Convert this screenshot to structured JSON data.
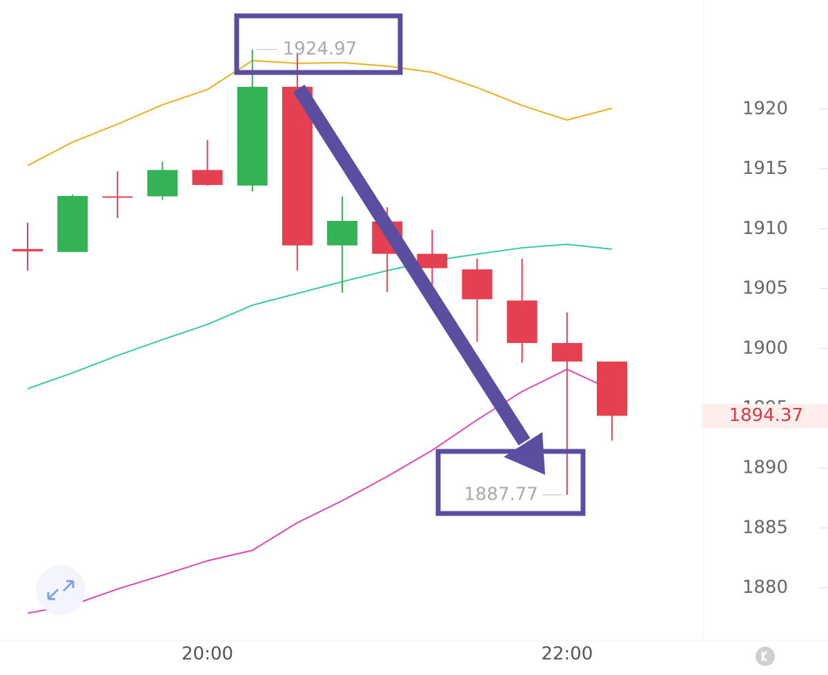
{
  "chart_data": {
    "type": "candlestick",
    "categories": [
      null,
      null,
      null,
      null,
      "20:00",
      null,
      null,
      null,
      null,
      null,
      null,
      null,
      "22:00",
      null
    ],
    "open": [
      1908.3,
      1908.05,
      1912.7,
      1912.7,
      1914.9,
      1913.6,
      1921.85,
      1908.6,
      1910.6,
      1907.9,
      1906.6,
      1904.0,
      1900.45,
      1898.9
    ],
    "high": [
      1910.5,
      1912.85,
      1914.8,
      1915.6,
      1917.4,
      1924.97,
      1924.7,
      1912.7,
      1911.8,
      1909.9,
      1907.5,
      1907.5,
      1903.0,
      1898.9
    ],
    "low": [
      1906.5,
      1908.05,
      1910.9,
      1912.4,
      1913.6,
      1913.1,
      1906.5,
      1904.65,
      1904.7,
      1905.05,
      1900.55,
      1898.8,
      1887.77,
      1892.3
    ],
    "close": [
      1908.1,
      1912.73,
      1912.6,
      1914.9,
      1913.65,
      1921.85,
      1908.6,
      1910.65,
      1907.9,
      1906.7,
      1904.1,
      1900.45,
      1898.9,
      1894.37
    ],
    "up_color": "#34b356",
    "down_color": "#e5404f",
    "lines": [
      {
        "color": "#e8b020",
        "values": [
          1915.27,
          1917.23,
          1918.73,
          1920.35,
          1921.62,
          1924.04,
          1923.81,
          1923.87,
          1923.58,
          1923.06,
          1921.79,
          1920.29,
          1919.08,
          1920.06
        ]
      },
      {
        "color": "#3cc6a8",
        "values": [
          1896.63,
          1897.96,
          1899.4,
          1900.73,
          1902.0,
          1903.61,
          1904.59,
          1905.57,
          1906.5,
          1907.31,
          1907.88,
          1908.4,
          1908.69,
          1908.29
        ]
      },
      {
        "color": "#d946b8",
        "values": [
          1877.88,
          1878.57,
          1879.9,
          1881.05,
          1882.26,
          1883.13,
          1885.44,
          1887.28,
          1889.3,
          1891.49,
          1894.03,
          1896.4,
          1898.25,
          1896.52
        ]
      }
    ],
    "ylim": [
      1875.6,
      1929.1
    ],
    "yticks": [
      1880,
      1885,
      1890,
      1895,
      1900,
      1905,
      1910,
      1915,
      1920
    ]
  }
}
